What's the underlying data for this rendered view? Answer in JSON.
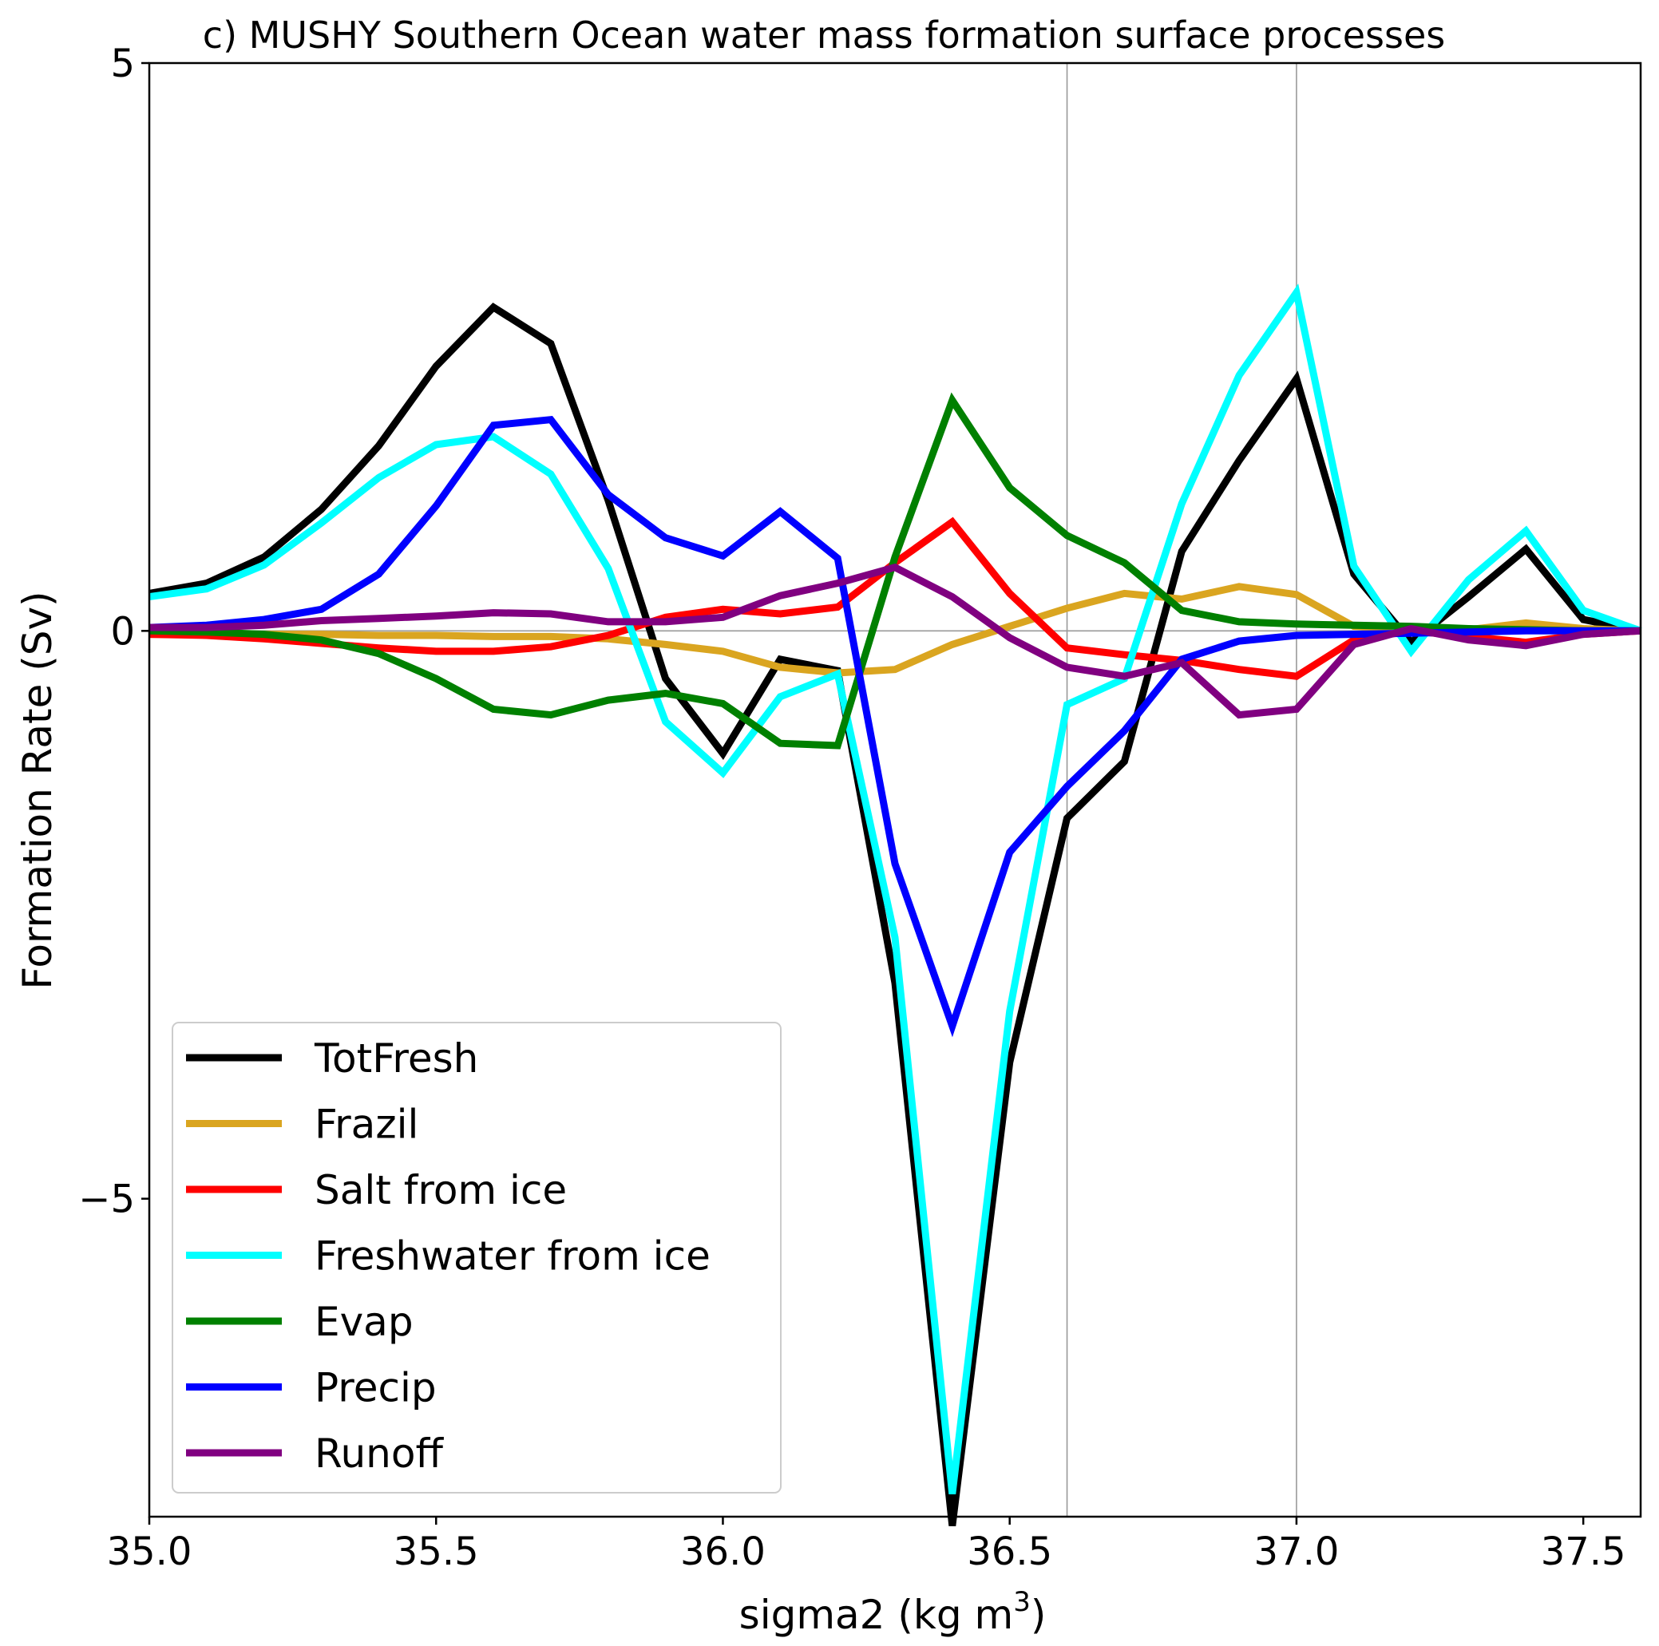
{
  "chart_data": {
    "type": "line",
    "title": "c) MUSHY Southern Ocean water mass formation surface processes",
    "xlabel": "sigma2 (kg m",
    "xlabel_sup": "3",
    "xlabel_end": ")",
    "ylabel": "Formation Rate (Sv)",
    "xlim": [
      35.0,
      37.6
    ],
    "ylim": [
      -7.8,
      5.0
    ],
    "xticks": [
      35.0,
      35.5,
      36.0,
      36.5,
      37.0,
      37.5
    ],
    "xtick_labels": [
      "35.0",
      "35.5",
      "36.0",
      "36.5",
      "37.0",
      "37.5"
    ],
    "yticks": [
      5,
      0,
      -5
    ],
    "ytick_labels": [
      "5",
      "0",
      "−5"
    ],
    "reference_vlines": [
      36.6,
      37.0
    ],
    "reference_hline": 0,
    "grid": false,
    "legend_position": "lower-left",
    "x": [
      35.0,
      35.1,
      35.2,
      35.3,
      35.4,
      35.5,
      35.6,
      35.7,
      35.8,
      35.9,
      36.0,
      36.1,
      36.2,
      36.3,
      36.4,
      36.5,
      36.6,
      36.7,
      36.8,
      36.9,
      37.0,
      37.1,
      37.2,
      37.3,
      37.4,
      37.5,
      37.6
    ],
    "series": [
      {
        "name": "TotFresh",
        "color": "#000000",
        "values": [
          0.33,
          0.42,
          0.65,
          1.07,
          1.63,
          2.33,
          2.85,
          2.53,
          1.15,
          -0.42,
          -1.08,
          -0.25,
          -0.35,
          -3.1,
          -7.88,
          -3.8,
          -1.65,
          -1.15,
          0.7,
          1.5,
          2.22,
          0.5,
          -0.1,
          0.3,
          0.72,
          0.1,
          0.0
        ]
      },
      {
        "name": "Frazil",
        "color": "#DAA520",
        "values": [
          -0.03,
          -0.03,
          -0.03,
          -0.03,
          -0.04,
          -0.04,
          -0.05,
          -0.05,
          -0.07,
          -0.12,
          -0.18,
          -0.32,
          -0.37,
          -0.34,
          -0.12,
          0.04,
          0.2,
          0.33,
          0.28,
          0.39,
          0.32,
          0.04,
          0.02,
          0.01,
          0.07,
          0.02,
          0.0
        ]
      },
      {
        "name": "Salt from ice",
        "color": "#FF0000",
        "values": [
          -0.03,
          -0.04,
          -0.07,
          -0.11,
          -0.15,
          -0.18,
          -0.18,
          -0.14,
          -0.04,
          0.12,
          0.19,
          0.15,
          0.21,
          0.6,
          0.96,
          0.33,
          -0.15,
          -0.21,
          -0.26,
          -0.34,
          -0.4,
          -0.08,
          0.0,
          -0.05,
          -0.1,
          -0.03,
          0.0
        ]
      },
      {
        "name": "Freshwater from ice",
        "color": "#00FFFF",
        "values": [
          0.3,
          0.37,
          0.58,
          0.95,
          1.35,
          1.64,
          1.71,
          1.38,
          0.55,
          -0.8,
          -1.25,
          -0.58,
          -0.38,
          -2.7,
          -7.6,
          -3.35,
          -0.65,
          -0.42,
          1.12,
          2.25,
          2.98,
          0.57,
          -0.18,
          0.45,
          0.88,
          0.18,
          0.0
        ]
      },
      {
        "name": "Evap",
        "color": "#008000",
        "values": [
          0.0,
          -0.01,
          -0.03,
          -0.08,
          -0.2,
          -0.42,
          -0.69,
          -0.74,
          -0.61,
          -0.55,
          -0.64,
          -0.99,
          -1.01,
          0.65,
          2.03,
          1.26,
          0.84,
          0.6,
          0.18,
          0.08,
          0.06,
          0.05,
          0.04,
          0.02,
          0.01,
          0.0,
          0.0
        ]
      },
      {
        "name": "Precip",
        "color": "#0000FF",
        "values": [
          0.03,
          0.05,
          0.1,
          0.19,
          0.5,
          1.1,
          1.81,
          1.86,
          1.2,
          0.82,
          0.66,
          1.05,
          0.64,
          -2.05,
          -3.48,
          -1.95,
          -1.37,
          -0.88,
          -0.25,
          -0.09,
          -0.04,
          -0.03,
          -0.02,
          -0.01,
          0.0,
          0.0,
          0.0
        ]
      },
      {
        "name": "Runoff",
        "color": "#800080",
        "values": [
          0.03,
          0.03,
          0.05,
          0.09,
          0.11,
          0.13,
          0.16,
          0.15,
          0.08,
          0.08,
          0.12,
          0.31,
          0.42,
          0.56,
          0.3,
          -0.06,
          -0.32,
          -0.4,
          -0.28,
          -0.74,
          -0.69,
          -0.12,
          0.02,
          -0.08,
          -0.13,
          -0.03,
          0.0
        ]
      }
    ]
  }
}
